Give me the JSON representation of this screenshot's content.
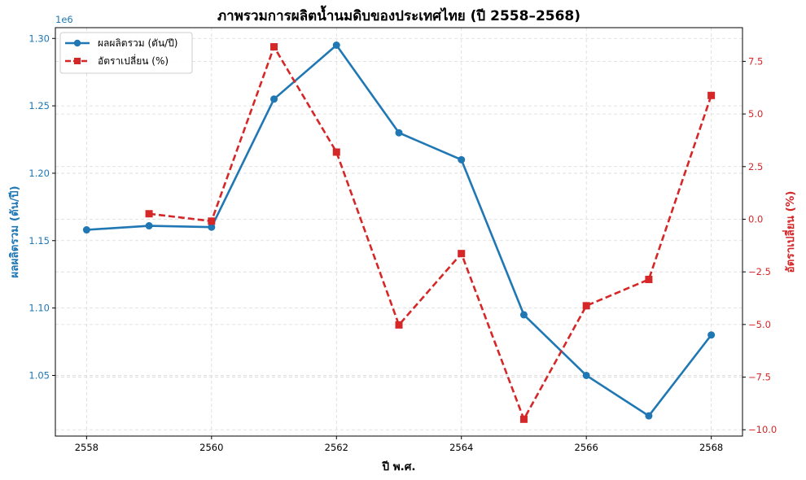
{
  "chart_data": {
    "type": "line",
    "title": "ภาพรวมการผลิตน้ำนมดิบของประเทศไทย (ปี 2558–2568)",
    "xlabel": "ปี พ.ศ.",
    "ylabel_left": "ผลผลิตรวม (ตัน/ปี)",
    "ylabel_right": "อัตราเปลี่ยน (%)",
    "left_axis_offset_label": "1e6",
    "x": [
      2558,
      2559,
      2560,
      2561,
      2562,
      2563,
      2564,
      2565,
      2566,
      2567,
      2568
    ],
    "x_ticks": [
      2558,
      2560,
      2562,
      2564,
      2566,
      2568
    ],
    "xlim": [
      2557.5,
      2568.5
    ],
    "ylim_left": [
      1.005,
      1.308
    ],
    "ylim_right": [
      -10.3,
      9.1
    ],
    "yticks_left": [
      "1.05",
      "1.10",
      "1.15",
      "1.20",
      "1.25",
      "1.30"
    ],
    "yticks_left_values": [
      1.05,
      1.1,
      1.15,
      1.2,
      1.25,
      1.3
    ],
    "yticks_right": [
      "−10.0",
      "−7.5",
      "−5.0",
      "−2.5",
      "0.0",
      "2.5",
      "5.0",
      "7.5"
    ],
    "yticks_right_values": [
      -10.0,
      -7.5,
      -5.0,
      -2.5,
      0.0,
      2.5,
      5.0,
      7.5
    ],
    "grid": true,
    "legend_position": "upper left",
    "series": [
      {
        "name": "ผลผลิตรวม (ตัน/ปี)",
        "axis": "left",
        "color": "#1f77b4",
        "style": "solid",
        "marker": "circle",
        "unit_multiplier": 1000000,
        "values": [
          1.158,
          1.161,
          1.16,
          1.255,
          1.295,
          1.23,
          1.21,
          1.095,
          1.05,
          1.02,
          1.08
        ]
      },
      {
        "name": "อัตราเปลี่ยน (%)",
        "axis": "right",
        "color": "#d62728",
        "style": "dashed",
        "marker": "square",
        "values": [
          null,
          0.26,
          -0.09,
          8.19,
          3.19,
          -5.02,
          -1.63,
          -9.5,
          -4.11,
          -2.86,
          5.88
        ]
      }
    ]
  }
}
